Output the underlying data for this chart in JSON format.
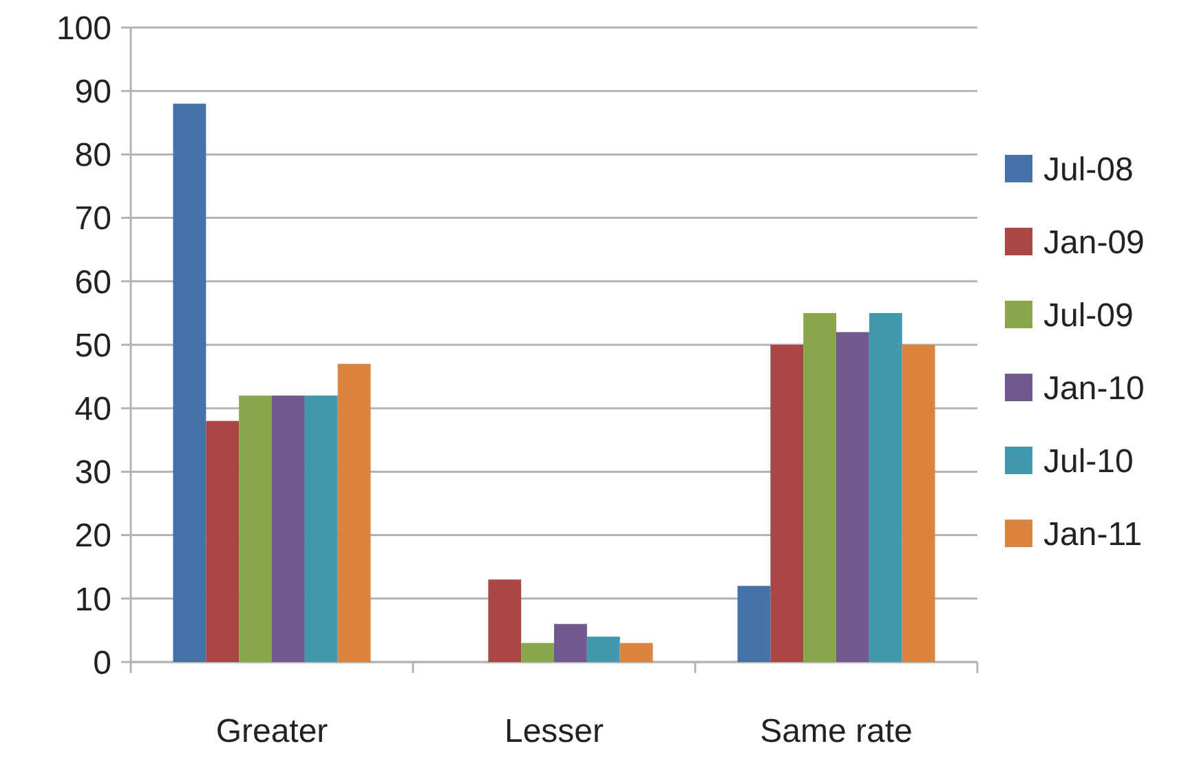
{
  "chart_data": {
    "type": "bar",
    "categories": [
      "Greater",
      "Lesser",
      "Same rate"
    ],
    "series": [
      {
        "name": "Jul-08",
        "color": "#4572a7",
        "values": [
          88,
          0,
          12
        ]
      },
      {
        "name": "Jan-09",
        "color": "#aa4643",
        "values": [
          38,
          13,
          50
        ]
      },
      {
        "name": "Jul-09",
        "color": "#89a54e",
        "values": [
          42,
          3,
          55
        ]
      },
      {
        "name": "Jan-10",
        "color": "#71588f",
        "values": [
          42,
          6,
          52
        ]
      },
      {
        "name": "Jul-10",
        "color": "#4198af",
        "values": [
          42,
          4,
          55
        ]
      },
      {
        "name": "Jan-11",
        "color": "#db843d",
        "values": [
          47,
          3,
          50
        ]
      }
    ],
    "ylim": [
      0,
      100
    ],
    "yticks": [
      0,
      10,
      20,
      30,
      40,
      50,
      60,
      70,
      80,
      90,
      100
    ],
    "grid": "y",
    "legend": "right"
  }
}
